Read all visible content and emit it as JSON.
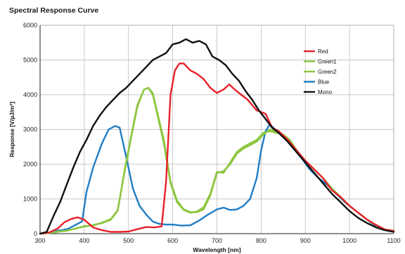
{
  "page": {
    "title": "Spectral Response Curve"
  },
  "chart_data": {
    "type": "line",
    "title": "Spectral Response Curve",
    "xlabel": "Wavelength [nm]",
    "ylabel": "Response [V/µJ/m²]",
    "xlim": [
      300,
      1100
    ],
    "ylim": [
      0,
      6000
    ],
    "xticks": [
      300,
      400,
      500,
      600,
      700,
      800,
      900,
      1000,
      1100
    ],
    "yticks": [
      0,
      1000,
      2000,
      3000,
      4000,
      5000,
      6000
    ],
    "grid": true,
    "legend_position": "top-right",
    "series": [
      {
        "name": "Red",
        "color": "#e8202a",
        "points": [
          [
            300,
            0
          ],
          [
            320,
            30
          ],
          [
            340,
            150
          ],
          [
            355,
            330
          ],
          [
            370,
            420
          ],
          [
            385,
            470
          ],
          [
            400,
            400
          ],
          [
            420,
            180
          ],
          [
            440,
            100
          ],
          [
            460,
            50
          ],
          [
            480,
            50
          ],
          [
            500,
            60
          ],
          [
            520,
            130
          ],
          [
            540,
            190
          ],
          [
            560,
            180
          ],
          [
            575,
            210
          ],
          [
            585,
            1500
          ],
          [
            595,
            4000
          ],
          [
            605,
            4700
          ],
          [
            615,
            4900
          ],
          [
            625,
            4900
          ],
          [
            640,
            4700
          ],
          [
            655,
            4600
          ],
          [
            670,
            4450
          ],
          [
            685,
            4200
          ],
          [
            700,
            4050
          ],
          [
            715,
            4150
          ],
          [
            728,
            4300
          ],
          [
            740,
            4150
          ],
          [
            755,
            4000
          ],
          [
            770,
            3850
          ],
          [
            790,
            3550
          ],
          [
            810,
            3450
          ],
          [
            825,
            3050
          ],
          [
            840,
            2950
          ],
          [
            860,
            2700
          ],
          [
            880,
            2400
          ],
          [
            900,
            2100
          ],
          [
            920,
            1850
          ],
          [
            940,
            1600
          ],
          [
            960,
            1250
          ],
          [
            980,
            1050
          ],
          [
            1000,
            800
          ],
          [
            1020,
            600
          ],
          [
            1040,
            400
          ],
          [
            1060,
            250
          ],
          [
            1080,
            120
          ],
          [
            1100,
            80
          ]
        ]
      },
      {
        "name": "Green1",
        "color": "#8dc63f",
        "points": [
          [
            300,
            0
          ],
          [
            320,
            20
          ],
          [
            340,
            60
          ],
          [
            360,
            80
          ],
          [
            380,
            150
          ],
          [
            400,
            200
          ],
          [
            420,
            250
          ],
          [
            440,
            300
          ],
          [
            460,
            400
          ],
          [
            475,
            650
          ],
          [
            490,
            1700
          ],
          [
            505,
            2700
          ],
          [
            520,
            3650
          ],
          [
            535,
            4150
          ],
          [
            545,
            4200
          ],
          [
            555,
            4050
          ],
          [
            565,
            3500
          ],
          [
            580,
            2700
          ],
          [
            595,
            1500
          ],
          [
            610,
            950
          ],
          [
            625,
            700
          ],
          [
            640,
            620
          ],
          [
            655,
            620
          ],
          [
            670,
            700
          ],
          [
            685,
            1100
          ],
          [
            700,
            1750
          ],
          [
            715,
            1800
          ],
          [
            730,
            2000
          ],
          [
            745,
            2300
          ],
          [
            760,
            2450
          ],
          [
            775,
            2550
          ],
          [
            790,
            2650
          ],
          [
            805,
            2850
          ],
          [
            820,
            3000
          ],
          [
            835,
            2950
          ],
          [
            850,
            2850
          ],
          [
            865,
            2700
          ],
          [
            880,
            2400
          ],
          [
            900,
            2100
          ],
          [
            920,
            1850
          ],
          [
            940,
            1600
          ],
          [
            960,
            1300
          ],
          [
            980,
            1050
          ],
          [
            1000,
            800
          ],
          [
            1020,
            600
          ],
          [
            1040,
            400
          ],
          [
            1060,
            250
          ],
          [
            1080,
            120
          ],
          [
            1100,
            80
          ]
        ]
      },
      {
        "name": "Green2",
        "color": "#8dc63f",
        "points": [
          [
            300,
            0
          ],
          [
            320,
            20
          ],
          [
            340,
            50
          ],
          [
            360,
            90
          ],
          [
            380,
            140
          ],
          [
            400,
            220
          ],
          [
            420,
            230
          ],
          [
            440,
            320
          ],
          [
            460,
            420
          ],
          [
            476,
            680
          ],
          [
            490,
            1750
          ],
          [
            505,
            2750
          ],
          [
            520,
            3700
          ],
          [
            535,
            4150
          ],
          [
            545,
            4200
          ],
          [
            555,
            4000
          ],
          [
            565,
            3450
          ],
          [
            580,
            2600
          ],
          [
            595,
            1450
          ],
          [
            610,
            900
          ],
          [
            625,
            680
          ],
          [
            640,
            600
          ],
          [
            655,
            640
          ],
          [
            670,
            760
          ],
          [
            685,
            1150
          ],
          [
            700,
            1780
          ],
          [
            715,
            1750
          ],
          [
            730,
            2050
          ],
          [
            745,
            2350
          ],
          [
            760,
            2500
          ],
          [
            775,
            2600
          ],
          [
            790,
            2700
          ],
          [
            805,
            2900
          ],
          [
            820,
            2950
          ],
          [
            835,
            2900
          ],
          [
            850,
            2850
          ],
          [
            865,
            2650
          ],
          [
            880,
            2400
          ],
          [
            900,
            2100
          ],
          [
            920,
            1850
          ],
          [
            940,
            1600
          ],
          [
            960,
            1300
          ],
          [
            980,
            1050
          ],
          [
            1000,
            800
          ],
          [
            1020,
            600
          ],
          [
            1040,
            400
          ],
          [
            1060,
            250
          ],
          [
            1080,
            120
          ],
          [
            1100,
            80
          ]
        ]
      },
      {
        "name": "Blue",
        "color": "#1f7dc6",
        "points": [
          [
            300,
            0
          ],
          [
            320,
            20
          ],
          [
            335,
            80
          ],
          [
            350,
            100
          ],
          [
            365,
            150
          ],
          [
            380,
            250
          ],
          [
            395,
            350
          ],
          [
            405,
            1200
          ],
          [
            420,
            1900
          ],
          [
            440,
            2600
          ],
          [
            455,
            3000
          ],
          [
            470,
            3100
          ],
          [
            480,
            3050
          ],
          [
            495,
            2200
          ],
          [
            510,
            1300
          ],
          [
            525,
            800
          ],
          [
            540,
            550
          ],
          [
            555,
            350
          ],
          [
            570,
            280
          ],
          [
            585,
            260
          ],
          [
            600,
            260
          ],
          [
            620,
            230
          ],
          [
            640,
            240
          ],
          [
            660,
            380
          ],
          [
            680,
            550
          ],
          [
            700,
            700
          ],
          [
            715,
            750
          ],
          [
            730,
            680
          ],
          [
            745,
            700
          ],
          [
            760,
            800
          ],
          [
            775,
            1000
          ],
          [
            790,
            1600
          ],
          [
            800,
            2400
          ],
          [
            810,
            2950
          ],
          [
            820,
            3150
          ],
          [
            835,
            2950
          ],
          [
            850,
            2800
          ],
          [
            870,
            2500
          ],
          [
            890,
            2200
          ],
          [
            910,
            1850
          ],
          [
            930,
            1600
          ],
          [
            950,
            1400
          ],
          [
            970,
            1150
          ],
          [
            990,
            900
          ],
          [
            1010,
            700
          ],
          [
            1030,
            500
          ],
          [
            1050,
            300
          ],
          [
            1070,
            150
          ],
          [
            1090,
            80
          ],
          [
            1100,
            60
          ]
        ]
      },
      {
        "name": "Mono",
        "color": "#111111",
        "points": [
          [
            300,
            0
          ],
          [
            315,
            50
          ],
          [
            330,
            500
          ],
          [
            345,
            900
          ],
          [
            360,
            1400
          ],
          [
            375,
            1900
          ],
          [
            390,
            2350
          ],
          [
            405,
            2700
          ],
          [
            420,
            3100
          ],
          [
            435,
            3400
          ],
          [
            450,
            3650
          ],
          [
            465,
            3850
          ],
          [
            480,
            4050
          ],
          [
            495,
            4200
          ],
          [
            510,
            4400
          ],
          [
            525,
            4600
          ],
          [
            540,
            4800
          ],
          [
            555,
            5000
          ],
          [
            570,
            5100
          ],
          [
            585,
            5200
          ],
          [
            600,
            5450
          ],
          [
            615,
            5500
          ],
          [
            630,
            5600
          ],
          [
            645,
            5500
          ],
          [
            660,
            5550
          ],
          [
            675,
            5450
          ],
          [
            690,
            5100
          ],
          [
            705,
            5000
          ],
          [
            720,
            4850
          ],
          [
            735,
            4600
          ],
          [
            750,
            4400
          ],
          [
            765,
            4100
          ],
          [
            780,
            3850
          ],
          [
            795,
            3550
          ],
          [
            810,
            3300
          ],
          [
            825,
            3050
          ],
          [
            840,
            2900
          ],
          [
            860,
            2650
          ],
          [
            880,
            2350
          ],
          [
            900,
            2050
          ],
          [
            920,
            1750
          ],
          [
            940,
            1450
          ],
          [
            960,
            1150
          ],
          [
            980,
            900
          ],
          [
            1000,
            650
          ],
          [
            1020,
            450
          ],
          [
            1040,
            300
          ],
          [
            1060,
            180
          ],
          [
            1080,
            100
          ],
          [
            1100,
            50
          ]
        ]
      }
    ]
  }
}
